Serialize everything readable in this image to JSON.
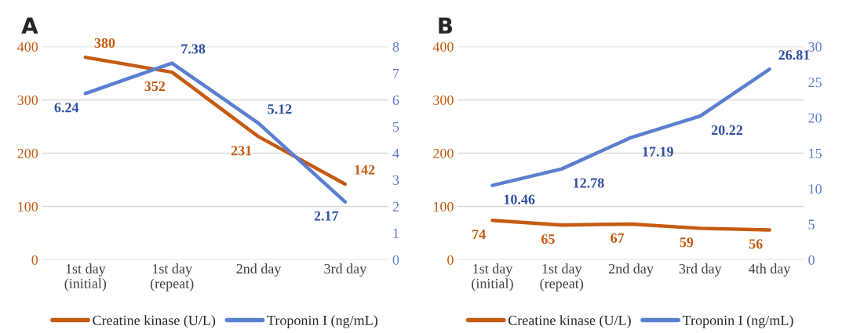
{
  "chart_data": [
    {
      "type": "line",
      "title": "A",
      "categories": [
        "1st day\n(initial)",
        "1st day\n(repeat)",
        "2nd day",
        "3rd day"
      ],
      "series": [
        {
          "name": "Creatine kinase (U/L)",
          "color": "#c55a11",
          "values": [
            380,
            352,
            231,
            142
          ]
        },
        {
          "name": "Troponin I (ng/mL)",
          "color": "#5b7fcf",
          "values": [
            6.24,
            7.38,
            5.12,
            2.17
          ],
          "axis": "y2"
        }
      ],
      "ylim": [
        0,
        400
      ],
      "yticks": [
        0,
        100,
        200,
        300,
        400
      ],
      "y2lim": [
        0,
        8
      ],
      "y2ticks": [
        0,
        1,
        2,
        3,
        4,
        5,
        6,
        7,
        8
      ],
      "grid": "y",
      "legend": "bottom",
      "data_labels": true
    },
    {
      "type": "line",
      "title": "B",
      "categories": [
        "1st day\n(initial)",
        "1st day\n(repeat)",
        "2nd day",
        "3rd day",
        "4th day"
      ],
      "series": [
        {
          "name": "Creatine kinase (U/L)",
          "color": "#c55a11",
          "values": [
            74,
            65,
            67,
            59,
            56
          ]
        },
        {
          "name": "Troponin I (ng/mL)",
          "color": "#5b7fcf",
          "values": [
            10.46,
            12.78,
            17.19,
            20.22,
            26.81
          ],
          "axis": "y2"
        }
      ],
      "ylim": [
        0,
        400
      ],
      "yticks": [
        0,
        100,
        200,
        300,
        400
      ],
      "y2lim": [
        0,
        30
      ],
      "y2ticks": [
        0,
        5,
        10,
        15,
        20,
        25,
        30
      ],
      "grid": "y",
      "legend": "bottom",
      "data_labels": true
    }
  ]
}
